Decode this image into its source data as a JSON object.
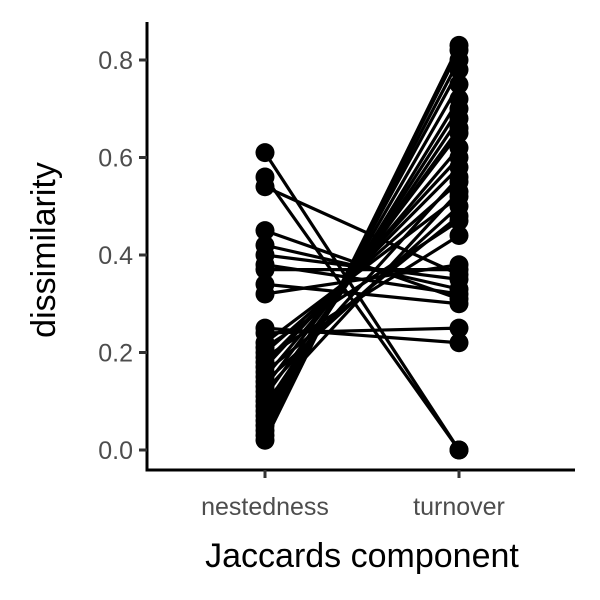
{
  "chart_data": {
    "type": "line",
    "title": "",
    "xlabel": "Jaccards component",
    "ylabel": "dissimilarity",
    "categories": [
      "nestedness",
      "turnover"
    ],
    "ylim": [
      -0.04,
      0.86
    ],
    "yticks": [
      0.0,
      0.2,
      0.4,
      0.6,
      0.8
    ],
    "ytick_labels": [
      "0.0",
      "0.2",
      "0.4",
      "0.6",
      "0.8"
    ],
    "grid": false,
    "legend": "none",
    "series": [
      {
        "values": [
          0.61,
          0.0
        ]
      },
      {
        "values": [
          0.56,
          0.0
        ]
      },
      {
        "values": [
          0.54,
          0.36
        ]
      },
      {
        "values": [
          0.45,
          0.31
        ]
      },
      {
        "values": [
          0.42,
          0.33
        ]
      },
      {
        "values": [
          0.4,
          0.35
        ]
      },
      {
        "values": [
          0.38,
          0.32
        ]
      },
      {
        "values": [
          0.37,
          0.37
        ]
      },
      {
        "values": [
          0.34,
          0.3
        ]
      },
      {
        "values": [
          0.32,
          0.38
        ]
      },
      {
        "values": [
          0.25,
          0.22
        ]
      },
      {
        "values": [
          0.24,
          0.25
        ]
      },
      {
        "values": [
          0.22,
          0.52
        ]
      },
      {
        "values": [
          0.21,
          0.47
        ]
      },
      {
        "values": [
          0.2,
          0.55
        ]
      },
      {
        "values": [
          0.19,
          0.44
        ]
      },
      {
        "values": [
          0.18,
          0.58
        ]
      },
      {
        "values": [
          0.17,
          0.6
        ]
      },
      {
        "values": [
          0.16,
          0.48
        ]
      },
      {
        "values": [
          0.15,
          0.62
        ]
      },
      {
        "values": [
          0.14,
          0.5
        ]
      },
      {
        "values": [
          0.13,
          0.65
        ]
      },
      {
        "values": [
          0.12,
          0.56
        ]
      },
      {
        "values": [
          0.11,
          0.66
        ]
      },
      {
        "values": [
          0.1,
          0.53
        ]
      },
      {
        "values": [
          0.09,
          0.68
        ]
      },
      {
        "values": [
          0.08,
          0.7
        ]
      },
      {
        "values": [
          0.07,
          0.72
        ]
      },
      {
        "values": [
          0.06,
          0.75
        ]
      },
      {
        "values": [
          0.05,
          0.78
        ]
      },
      {
        "values": [
          0.04,
          0.8
        ]
      },
      {
        "values": [
          0.03,
          0.82
        ]
      },
      {
        "values": [
          0.02,
          0.83
        ]
      }
    ]
  }
}
